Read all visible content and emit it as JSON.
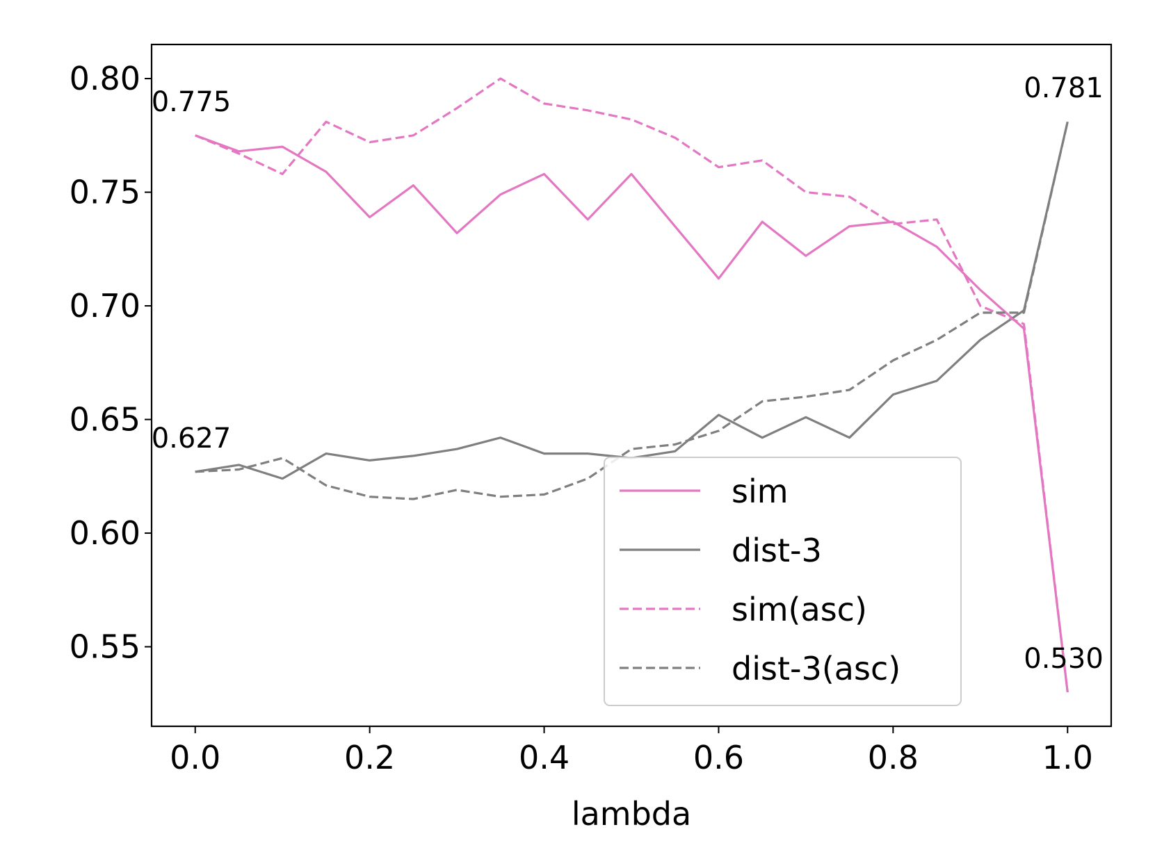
{
  "chart_data": {
    "type": "line",
    "title": "",
    "xlabel": "lambda",
    "ylabel": "",
    "xlim": [
      -0.05,
      1.05
    ],
    "ylim": [
      0.515,
      0.815
    ],
    "xticks": [
      "0.0",
      "0.2",
      "0.4",
      "0.6",
      "0.8",
      "1.0"
    ],
    "xtick_values": [
      0.0,
      0.2,
      0.4,
      0.6,
      0.8,
      1.0
    ],
    "yticks": [
      "0.55",
      "0.60",
      "0.65",
      "0.70",
      "0.75",
      "0.80"
    ],
    "ytick_values": [
      0.55,
      0.6,
      0.65,
      0.7,
      0.75,
      0.8
    ],
    "grid": false,
    "legend_position": "lower-right",
    "x": [
      0.0,
      0.05,
      0.1,
      0.15,
      0.2,
      0.25,
      0.3,
      0.35,
      0.4,
      0.45,
      0.5,
      0.55,
      0.6,
      0.65,
      0.7,
      0.75,
      0.8,
      0.85,
      0.9,
      0.95,
      1.0
    ],
    "series": [
      {
        "name": "sim",
        "color": "#e377c2",
        "dash": "solid",
        "values": [
          0.775,
          0.768,
          0.77,
          0.759,
          0.739,
          0.753,
          0.732,
          0.749,
          0.758,
          0.738,
          0.758,
          0.735,
          0.712,
          0.737,
          0.722,
          0.735,
          0.737,
          0.726,
          0.707,
          0.69,
          0.53
        ]
      },
      {
        "name": "dist-3",
        "color": "#7f7f7f",
        "dash": "solid",
        "values": [
          0.627,
          0.63,
          0.624,
          0.635,
          0.632,
          0.634,
          0.637,
          0.642,
          0.635,
          0.635,
          0.633,
          0.636,
          0.652,
          0.642,
          0.651,
          0.642,
          0.661,
          0.667,
          0.685,
          0.698,
          0.781
        ]
      },
      {
        "name": "sim(asc)",
        "color": "#e377c2",
        "dash": "dashed",
        "values": [
          0.775,
          0.767,
          0.758,
          0.781,
          0.772,
          0.775,
          0.787,
          0.8,
          0.789,
          0.786,
          0.782,
          0.774,
          0.761,
          0.764,
          0.75,
          0.748,
          0.736,
          0.738,
          0.7,
          0.692,
          0.53
        ]
      },
      {
        "name": "dist-3(asc)",
        "color": "#7f7f7f",
        "dash": "dashed",
        "values": [
          0.627,
          0.628,
          0.633,
          0.621,
          0.616,
          0.615,
          0.619,
          0.616,
          0.617,
          0.624,
          0.637,
          0.639,
          0.645,
          0.658,
          0.66,
          0.663,
          0.676,
          0.685,
          0.697,
          0.697,
          0.781
        ]
      }
    ],
    "annotations": [
      {
        "text": "0.775",
        "x": 0.0,
        "y": 0.775
      },
      {
        "text": "0.627",
        "x": 0.0,
        "y": 0.627
      },
      {
        "text": "0.781",
        "x": 1.0,
        "y": 0.781
      },
      {
        "text": "0.530",
        "x": 1.0,
        "y": 0.53
      }
    ]
  }
}
